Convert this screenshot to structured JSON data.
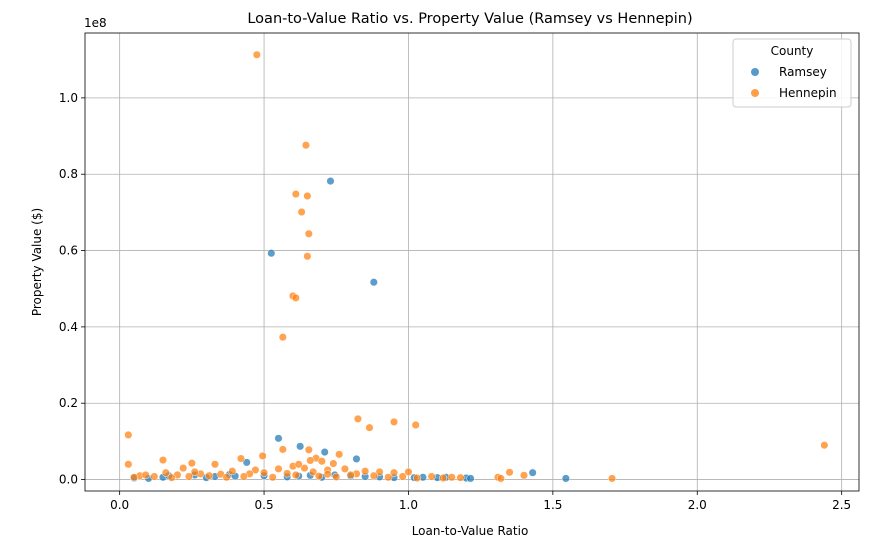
{
  "chart_data": {
    "type": "scatter",
    "title": "Loan-to-Value Ratio vs. Property Value (Ramsey vs Hennepin)",
    "xlabel": "Loan-to-Value Ratio",
    "ylabel": "Property Value ($)",
    "y_offset_text": "1e8",
    "xlim": [
      -0.12,
      2.56
    ],
    "ylim": [
      -0.03,
      1.17
    ],
    "x_ticks": [
      0.0,
      0.5,
      1.0,
      1.5,
      2.0,
      2.5
    ],
    "x_tick_labels": [
      "0.0",
      "0.5",
      "1.0",
      "1.5",
      "2.0",
      "2.5"
    ],
    "y_ticks": [
      0.0,
      0.2,
      0.4,
      0.6,
      0.8,
      1.0
    ],
    "y_tick_labels": [
      "0.0",
      "0.2",
      "0.4",
      "0.6",
      "0.8",
      "1.0"
    ],
    "grid": true,
    "legend": {
      "title": "County",
      "placement": "top-right"
    },
    "series": [
      {
        "name": "Ramsey",
        "color": "#1f77b4",
        "points": [
          [
            0.525,
            0.593
          ],
          [
            0.73,
            0.782
          ],
          [
            0.88,
            0.517
          ],
          [
            0.55,
            0.108
          ],
          [
            0.625,
            0.087
          ],
          [
            0.71,
            0.072
          ],
          [
            0.82,
            0.054
          ],
          [
            0.44,
            0.045
          ],
          [
            1.43,
            0.018
          ],
          [
            1.545,
            0.003
          ],
          [
            0.26,
            0.012
          ],
          [
            0.38,
            0.013
          ],
          [
            0.5,
            0.01
          ],
          [
            0.66,
            0.011
          ],
          [
            0.745,
            0.012
          ],
          [
            0.8,
            0.009
          ],
          [
            0.9,
            0.007
          ],
          [
            1.05,
            0.006
          ],
          [
            1.1,
            0.005
          ],
          [
            1.13,
            0.006
          ],
          [
            1.2,
            0.004
          ],
          [
            1.215,
            0.003
          ],
          [
            0.15,
            0.006
          ],
          [
            0.05,
            0.004
          ],
          [
            0.1,
            0.003
          ],
          [
            0.33,
            0.008
          ],
          [
            0.58,
            0.007
          ],
          [
            0.7,
            0.006
          ],
          [
            0.95,
            0.005
          ],
          [
            1.02,
            0.005
          ],
          [
            0.17,
            0.01
          ],
          [
            0.4,
            0.009
          ],
          [
            0.62,
            0.009
          ],
          [
            0.85,
            0.008
          ],
          [
            0.3,
            0.005
          ]
        ]
      },
      {
        "name": "Hennepin",
        "color": "#ff7f0e",
        "points": [
          [
            0.475,
            1.113
          ],
          [
            0.645,
            0.876
          ],
          [
            0.61,
            0.748
          ],
          [
            0.65,
            0.743
          ],
          [
            0.63,
            0.701
          ],
          [
            0.655,
            0.644
          ],
          [
            0.65,
            0.585
          ],
          [
            0.6,
            0.481
          ],
          [
            0.61,
            0.476
          ],
          [
            0.565,
            0.373
          ],
          [
            0.825,
            0.159
          ],
          [
            0.95,
            0.151
          ],
          [
            1.025,
            0.143
          ],
          [
            0.865,
            0.136
          ],
          [
            0.03,
            0.117
          ],
          [
            2.44,
            0.09
          ],
          [
            0.565,
            0.079
          ],
          [
            0.655,
            0.078
          ],
          [
            0.76,
            0.066
          ],
          [
            0.495,
            0.062
          ],
          [
            0.42,
            0.055
          ],
          [
            0.15,
            0.051
          ],
          [
            0.68,
            0.056
          ],
          [
            0.7,
            0.048
          ],
          [
            0.74,
            0.042
          ],
          [
            0.25,
            0.043
          ],
          [
            0.33,
            0.04
          ],
          [
            0.03,
            0.04
          ],
          [
            0.22,
            0.03
          ],
          [
            0.6,
            0.035
          ],
          [
            1.35,
            0.019
          ],
          [
            1.4,
            0.011
          ],
          [
            1.31,
            0.006
          ],
          [
            1.32,
            0.003
          ],
          [
            1.705,
            0.003
          ],
          [
            0.64,
            0.03
          ],
          [
            0.72,
            0.025
          ],
          [
            0.78,
            0.028
          ],
          [
            0.85,
            0.022
          ],
          [
            0.9,
            0.02
          ],
          [
            0.95,
            0.018
          ],
          [
            1.0,
            0.02
          ],
          [
            0.55,
            0.028
          ],
          [
            0.47,
            0.025
          ],
          [
            0.45,
            0.015
          ],
          [
            0.07,
            0.01
          ],
          [
            0.12,
            0.008
          ],
          [
            0.2,
            0.012
          ],
          [
            0.28,
            0.015
          ],
          [
            0.35,
            0.014
          ],
          [
            0.5,
            0.018
          ],
          [
            0.58,
            0.016
          ],
          [
            0.67,
            0.02
          ],
          [
            0.82,
            0.015
          ],
          [
            1.08,
            0.008
          ],
          [
            1.15,
            0.006
          ],
          [
            1.18,
            0.005
          ],
          [
            0.05,
            0.006
          ],
          [
            0.09,
            0.012
          ],
          [
            0.18,
            0.005
          ],
          [
            0.24,
            0.008
          ],
          [
            0.31,
            0.01
          ],
          [
            0.37,
            0.006
          ],
          [
            0.43,
            0.008
          ],
          [
            0.53,
            0.006
          ],
          [
            0.61,
            0.012
          ],
          [
            0.69,
            0.009
          ],
          [
            0.75,
            0.007
          ],
          [
            0.88,
            0.01
          ],
          [
            0.93,
            0.006
          ],
          [
            0.98,
            0.008
          ],
          [
            1.03,
            0.004
          ],
          [
            1.12,
            0.004
          ],
          [
            0.16,
            0.018
          ],
          [
            0.26,
            0.02
          ],
          [
            0.39,
            0.022
          ],
          [
            0.72,
            0.014
          ],
          [
            0.8,
            0.012
          ],
          [
            0.62,
            0.04
          ],
          [
            0.66,
            0.05
          ]
        ]
      }
    ]
  }
}
